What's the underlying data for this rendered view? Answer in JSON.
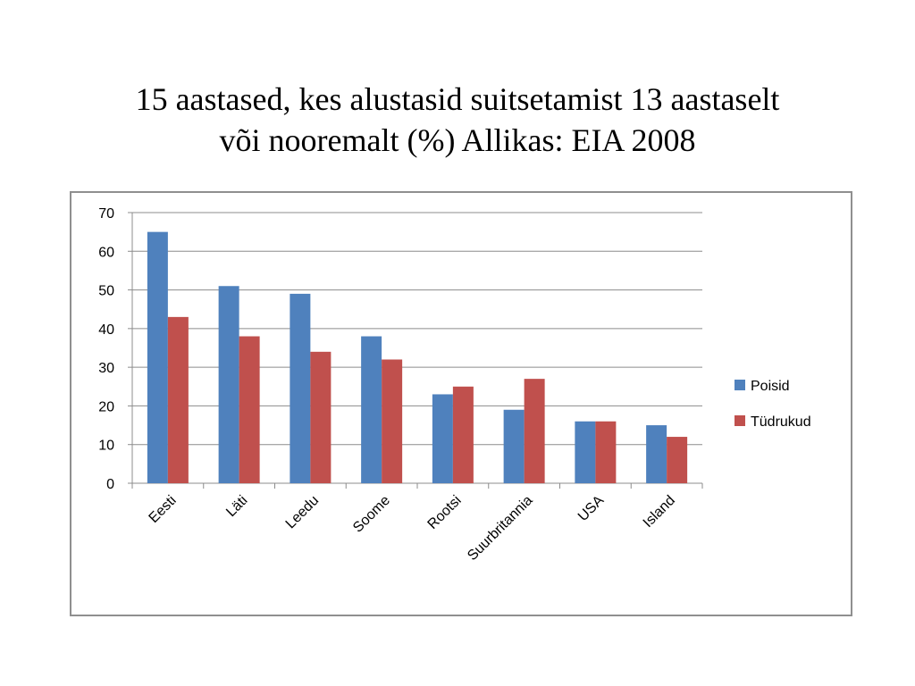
{
  "slide": {
    "title_line1": "15 aastased, kes alustasid suitsetamist 13 aastaselt",
    "title_line2": "või nooremalt (%) Allikas: EIA 2008"
  },
  "chart_data": {
    "type": "bar",
    "title": "15 aastased, kes alustasid suitsetamist 13 aastaselt või nooremalt (%) Allikas: EIA 2008",
    "categories": [
      "Eesti",
      "Läti",
      "Leedu",
      "Soome",
      "Rootsi",
      "Suurbritannia",
      "USA",
      "Island"
    ],
    "series": [
      {
        "name": "Poisid",
        "color": "#4f81bd",
        "values": [
          65,
          51,
          49,
          38,
          23,
          19,
          16,
          15
        ]
      },
      {
        "name": "Tüdrukud",
        "color": "#c0504d",
        "values": [
          43,
          38,
          34,
          32,
          25,
          27,
          16,
          12
        ]
      }
    ],
    "xlabel": "",
    "ylabel": "",
    "ylim": [
      0,
      70
    ],
    "yticks": [
      0,
      10,
      20,
      30,
      40,
      50,
      60,
      70
    ],
    "grid": true,
    "legend": "right"
  }
}
